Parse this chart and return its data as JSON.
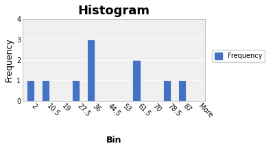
{
  "bins": [
    "2",
    "10.5",
    "19",
    "27.5",
    "36",
    "44.5",
    "53",
    "61.5",
    "70",
    "78.5",
    "87",
    "More"
  ],
  "frequencies": [
    1,
    1,
    0,
    1,
    3,
    0,
    0,
    2,
    0,
    1,
    1,
    0
  ],
  "bar_color": "#4472C4",
  "title": "Histogram",
  "xlabel": "Bin",
  "ylabel": "Frequency",
  "ylim": [
    0,
    4
  ],
  "yticks": [
    0,
    1,
    2,
    3,
    4
  ],
  "legend_label": "Frequency",
  "title_fontsize": 13,
  "label_fontsize": 9,
  "tick_fontsize": 7,
  "bg_color": "#ffffff",
  "plot_bg_color": "#f0f0f0",
  "grid_color": "#ffffff"
}
